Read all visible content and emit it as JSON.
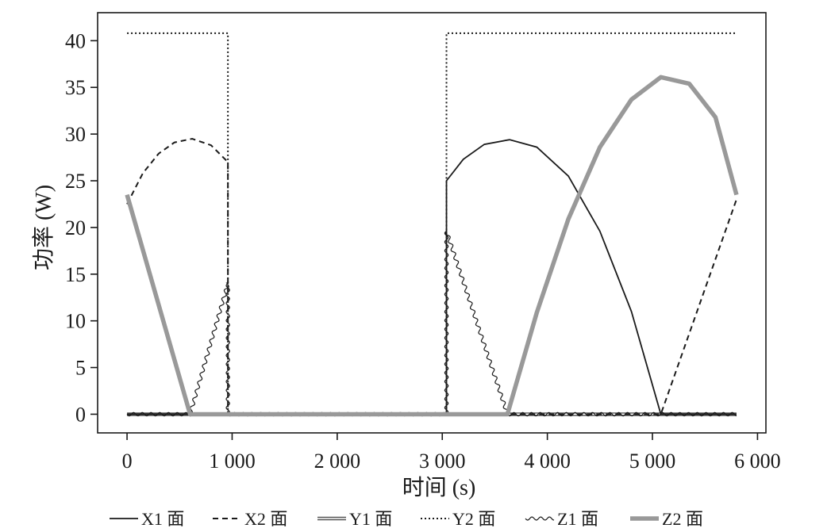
{
  "chart_data": {
    "type": "line",
    "title": "",
    "xlabel": "时间 (s)",
    "ylabel": "功率 (W)",
    "xlim": [
      -280,
      6080
    ],
    "ylim": [
      -2,
      43
    ],
    "xticks": [
      0,
      1000,
      2000,
      3000,
      4000,
      5000,
      6000
    ],
    "xtick_labels": [
      "0",
      "1 000",
      "2 000",
      "3 000",
      "4 000",
      "5 000",
      "6 000"
    ],
    "yticks": [
      0,
      5,
      10,
      15,
      20,
      25,
      30,
      35,
      40
    ],
    "ytick_labels": [
      "0",
      "5",
      "10",
      "15",
      "20",
      "25",
      "30",
      "35",
      "40"
    ],
    "grid": false,
    "legend_position": "bottom",
    "series": [
      {
        "name": "X1 面",
        "style": "solid",
        "color": "#1a1a1a",
        "x": [
          0,
          3040,
          3040,
          3200,
          3400,
          3640,
          3900,
          4200,
          4500,
          4800,
          5080,
          5080,
          5800
        ],
        "y": [
          0,
          0,
          25.0,
          27.3,
          28.9,
          29.4,
          28.6,
          25.5,
          19.6,
          11.0,
          0,
          0,
          0
        ]
      },
      {
        "name": "X2 面",
        "style": "dashed",
        "color": "#1a1a1a",
        "x": [
          0,
          150,
          300,
          450,
          620,
          800,
          960,
          960,
          5080,
          5800
        ],
        "y": [
          22.5,
          25.8,
          27.9,
          29.1,
          29.5,
          28.8,
          27.0,
          0,
          0,
          23.0
        ]
      },
      {
        "name": "Y1 面",
        "style": "double",
        "color": "#555555",
        "x": [
          0,
          5800
        ],
        "y": [
          0,
          0
        ]
      },
      {
        "name": "Y2 面",
        "style": "dotted",
        "color": "#1a1a1a",
        "x": [
          0,
          960,
          960,
          3040,
          3040,
          5800
        ],
        "y": [
          40.8,
          40.8,
          0,
          0,
          40.8,
          40.8
        ]
      },
      {
        "name": "Z1 面",
        "style": "wavy",
        "color": "#1a1a1a",
        "x": [
          0,
          600,
          960,
          960,
          3040,
          3040,
          3620,
          5800
        ],
        "y": [
          0,
          0,
          14.0,
          0,
          0,
          19.6,
          0,
          0
        ]
      },
      {
        "name": "Z2 面",
        "style": "thick",
        "color": "#999999",
        "x": [
          0,
          600,
          3620,
          3900,
          4200,
          4500,
          4800,
          5080,
          5350,
          5600,
          5800
        ],
        "y": [
          23.5,
          0,
          0,
          10.9,
          20.9,
          28.6,
          33.7,
          36.1,
          35.4,
          31.8,
          23.5
        ]
      }
    ]
  }
}
